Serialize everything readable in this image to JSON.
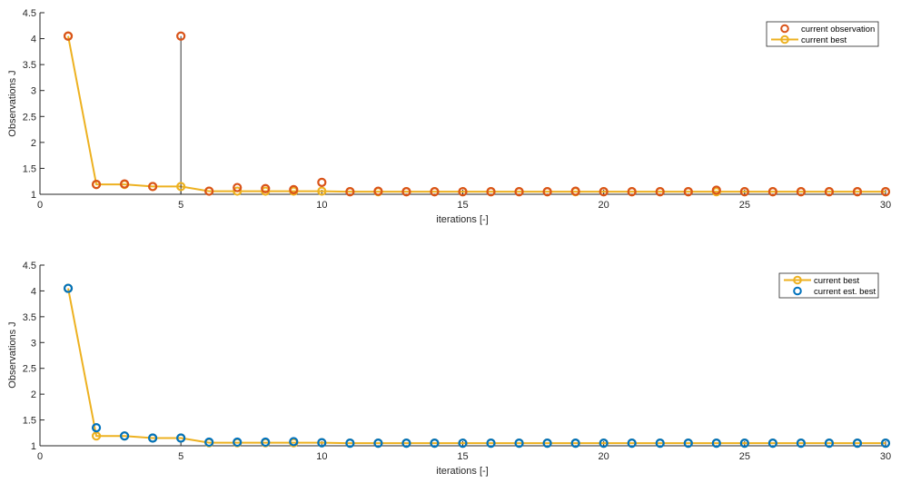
{
  "chart_data": [
    {
      "type": "line",
      "title": "",
      "xlabel": "iterations [-]",
      "ylabel": "Observations J",
      "xlim": [
        0,
        30
      ],
      "ylim": [
        1,
        4.5
      ],
      "xticks": [
        0,
        5,
        10,
        15,
        20,
        25,
        30
      ],
      "yticks": [
        1,
        1.5,
        2,
        2.5,
        3,
        3.5,
        4,
        4.5
      ],
      "legend_position": "top-right",
      "x": [
        1,
        2,
        3,
        4,
        5,
        6,
        7,
        8,
        9,
        10,
        11,
        12,
        13,
        14,
        15,
        16,
        17,
        18,
        19,
        20,
        21,
        22,
        23,
        24,
        25,
        26,
        27,
        28,
        29,
        30
      ],
      "series": [
        {
          "name": "current observation",
          "style": "markers",
          "color": "#D95319",
          "values": [
            4.05,
            1.19,
            1.2,
            1.15,
            4.05,
            1.06,
            1.13,
            1.11,
            1.09,
            1.23,
            1.05,
            1.06,
            1.05,
            1.05,
            1.05,
            1.05,
            1.05,
            1.05,
            1.06,
            1.05,
            1.05,
            1.05,
            1.05,
            1.08,
            1.05,
            1.05,
            1.05,
            1.05,
            1.05,
            1.05
          ]
        },
        {
          "name": "current best",
          "style": "line-markers",
          "color": "#EDB120",
          "values": [
            4.05,
            1.19,
            1.19,
            1.15,
            1.15,
            1.06,
            1.06,
            1.06,
            1.06,
            1.06,
            1.05,
            1.05,
            1.05,
            1.05,
            1.05,
            1.05,
            1.05,
            1.05,
            1.05,
            1.05,
            1.05,
            1.05,
            1.05,
            1.05,
            1.05,
            1.05,
            1.05,
            1.05,
            1.05,
            1.05
          ]
        }
      ]
    },
    {
      "type": "line",
      "title": "",
      "xlabel": "iterations [-]",
      "ylabel": "Observations J",
      "xlim": [
        0,
        30
      ],
      "ylim": [
        1,
        4.5
      ],
      "xticks": [
        0,
        5,
        10,
        15,
        20,
        25,
        30
      ],
      "yticks": [
        1,
        1.5,
        2,
        2.5,
        3,
        3.5,
        4,
        4.5
      ],
      "legend_position": "top-right",
      "x": [
        1,
        2,
        3,
        4,
        5,
        6,
        7,
        8,
        9,
        10,
        11,
        12,
        13,
        14,
        15,
        16,
        17,
        18,
        19,
        20,
        21,
        22,
        23,
        24,
        25,
        26,
        27,
        28,
        29,
        30
      ],
      "series": [
        {
          "name": "current best",
          "style": "line-markers",
          "color": "#EDB120",
          "values": [
            4.05,
            1.19,
            1.19,
            1.15,
            1.15,
            1.06,
            1.06,
            1.06,
            1.06,
            1.06,
            1.05,
            1.05,
            1.05,
            1.05,
            1.05,
            1.05,
            1.05,
            1.05,
            1.05,
            1.05,
            1.05,
            1.05,
            1.05,
            1.05,
            1.05,
            1.05,
            1.05,
            1.05,
            1.05,
            1.05
          ]
        },
        {
          "name": "current est. best",
          "style": "markers",
          "color": "#0072BD",
          "values": [
            4.05,
            1.35,
            1.19,
            1.15,
            1.15,
            1.07,
            1.07,
            1.07,
            1.08,
            1.06,
            1.05,
            1.05,
            1.05,
            1.05,
            1.05,
            1.05,
            1.05,
            1.05,
            1.05,
            1.05,
            1.05,
            1.05,
            1.05,
            1.05,
            1.05,
            1.05,
            1.05,
            1.05,
            1.05,
            1.05
          ]
        }
      ]
    }
  ]
}
